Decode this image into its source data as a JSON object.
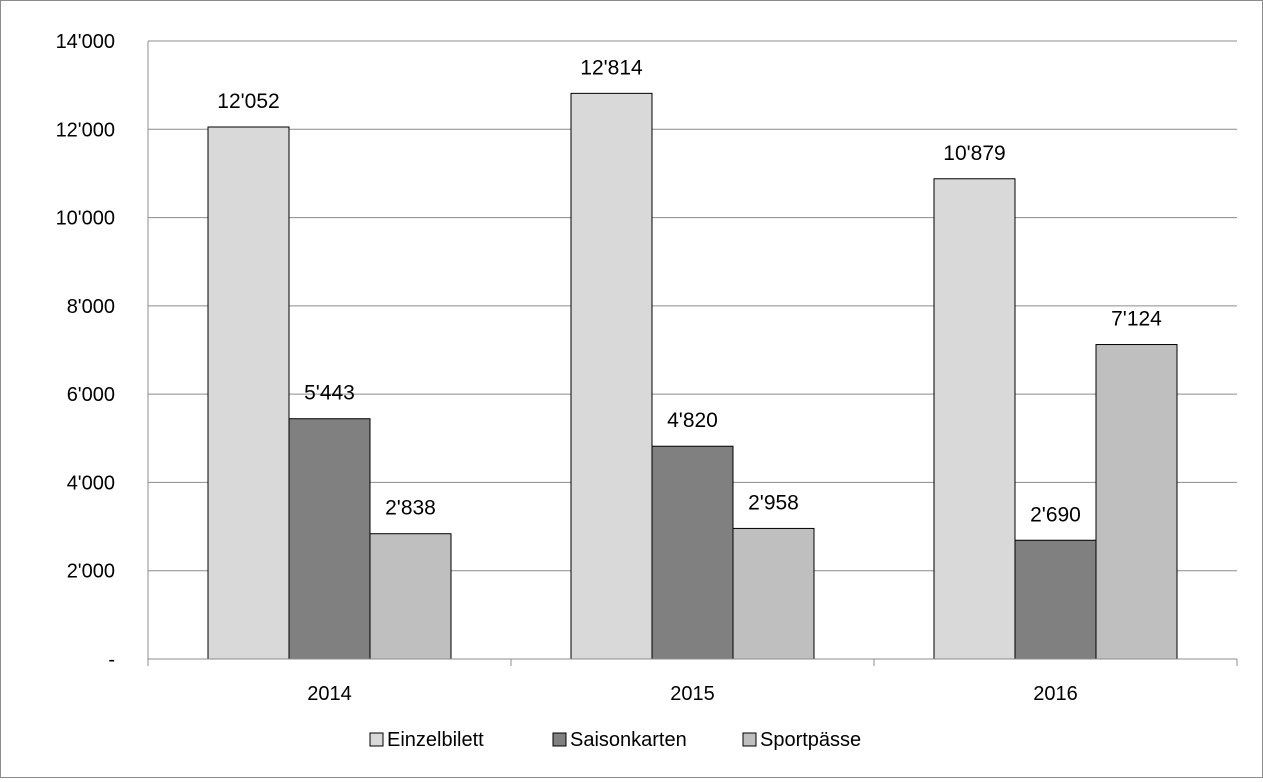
{
  "chart_data": {
    "type": "bar",
    "title": "",
    "xlabel": "",
    "ylabel": "",
    "categories": [
      "2014",
      "2015",
      "2016"
    ],
    "series": [
      {
        "name": "Einzelbilett",
        "color": "#d9d9d9",
        "values": [
          12052,
          12814,
          10879
        ],
        "labels": [
          "12'052",
          "12'814",
          "10'879"
        ]
      },
      {
        "name": "Saisonkarten",
        "color": "#808080",
        "values": [
          5443,
          4820,
          2690
        ],
        "labels": [
          "5'443",
          "4'820",
          "2'690"
        ]
      },
      {
        "name": "Sportpässe",
        "color": "#bfbfbf",
        "values": [
          2838,
          2958,
          7124
        ],
        "labels": [
          "2'838",
          "2'958",
          "7'124"
        ]
      }
    ],
    "ylim": [
      0,
      14000
    ],
    "yticks": [
      0,
      2000,
      4000,
      6000,
      8000,
      10000,
      12000,
      14000
    ],
    "ytick_labels": [
      "-",
      "2'000",
      "4'000",
      "6'000",
      "8'000",
      "10'000",
      "12'000",
      "14'000"
    ],
    "grid": true,
    "legend_position": "bottom"
  }
}
